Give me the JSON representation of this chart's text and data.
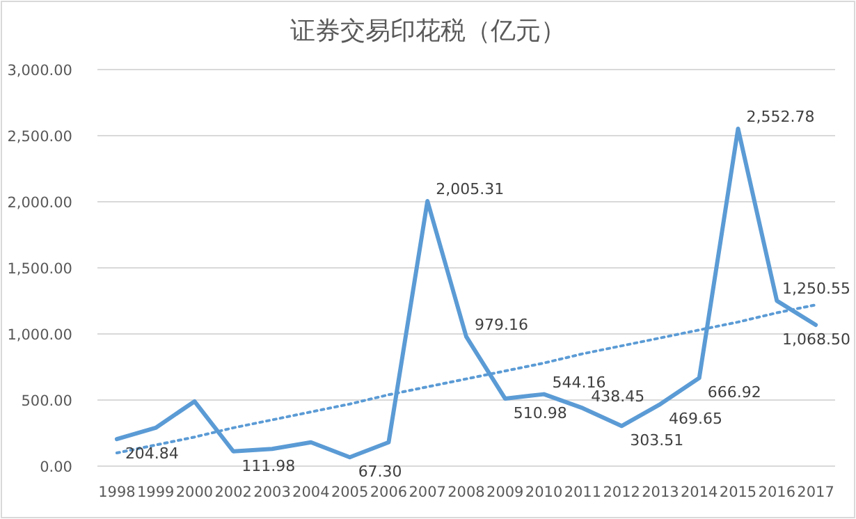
{
  "chart_data": {
    "type": "line",
    "title": "证券交易印花税（亿元）",
    "categories": [
      "1998",
      "1999",
      "2000",
      "2002",
      "2003",
      "2004",
      "2005",
      "2006",
      "2007",
      "2008",
      "2009",
      "2010",
      "2011",
      "2012",
      "2013",
      "2014",
      "2015",
      "2016",
      "2017"
    ],
    "series": [
      {
        "type": "line",
        "color": "#5b9bd5",
        "values": [
          204.84,
          290,
          490,
          111.98,
          130,
          180,
          67.3,
          180,
          2005.31,
          979.16,
          510.98,
          544.16,
          438.45,
          303.51,
          469.65,
          666.92,
          2552.78,
          1250.55,
          1068.5
        ],
        "value_labels": [
          "204.84",
          null,
          null,
          "111.98",
          null,
          null,
          "67.30",
          null,
          "2,005.31",
          "979.16",
          "510.98",
          "544.16",
          "438.45",
          "303.51",
          "469.65",
          "666.92",
          "2,552.78",
          "1,250.55",
          "1,068.50"
        ]
      },
      {
        "type": "line",
        "color": "#5b9bd5",
        "line_style": "dotted",
        "values": [
          100,
          160,
          220,
          290,
          350,
          410,
          470,
          540,
          600,
          660,
          720,
          780,
          850,
          910,
          970,
          1030,
          1090,
          1160,
          1220
        ]
      }
    ],
    "ylim": [
      0,
      3000
    ],
    "yticks": [
      {
        "value": 0,
        "label": "0.00"
      },
      {
        "value": 500,
        "label": "500.00"
      },
      {
        "value": 1000,
        "label": "1,000.00"
      },
      {
        "value": 1500,
        "label": "1,500.00"
      },
      {
        "value": 2000,
        "label": "2,000.00"
      },
      {
        "value": 2500,
        "label": "2,500.00"
      },
      {
        "value": 3000,
        "label": "3,000.00"
      }
    ],
    "grid": "y"
  }
}
